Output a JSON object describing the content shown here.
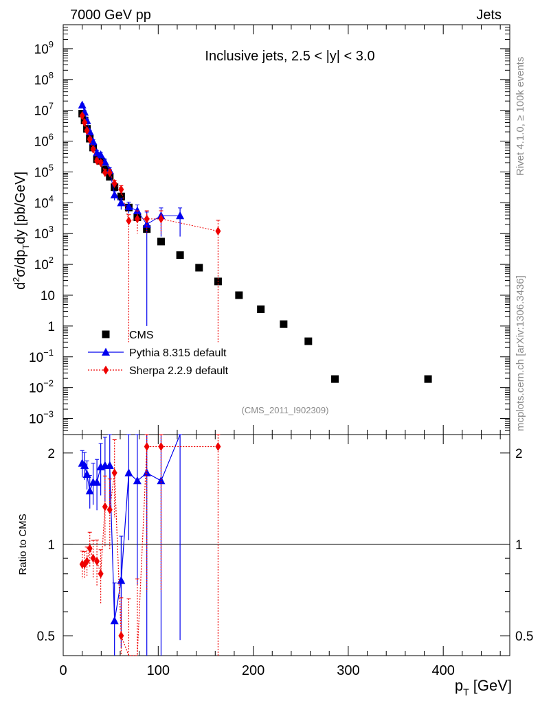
{
  "header": {
    "left": "7000 GeV pp",
    "right": "Jets"
  },
  "side_labels": {
    "rivet": "Rivet 4.1.0, ≥ 100k events",
    "mcplots": "mcplots.cern.ch [arXiv:1306.3436]"
  },
  "chart_data": {
    "type": "scatter",
    "title": "Inclusive jets, 2.5 < |y| < 3.0",
    "watermark": "(CMS_2011_I902309)",
    "xlabel": "p_T [GeV]",
    "ylabel": "d²σ/dp_T dy [pb/GeV]",
    "ratio_ylabel": "Ratio to CMS",
    "xlim": [
      0,
      470
    ],
    "ylim": [
      0.0003,
      6000000000
    ],
    "ratio_ylim": [
      0.43,
      2.3
    ],
    "x_ticks": [
      0,
      100,
      200,
      300,
      400
    ],
    "ratio_ticks": [
      0.5,
      1,
      2
    ],
    "ratio_reference": 1,
    "y_tick_labels": [
      {
        "value": 0.001,
        "mant": "10",
        "exp": "−3"
      },
      {
        "value": 0.01,
        "mant": "10",
        "exp": "−2"
      },
      {
        "value": 0.1,
        "mant": "10",
        "exp": "−1"
      },
      {
        "value": 1,
        "mant": "1",
        "exp": ""
      },
      {
        "value": 10,
        "mant": "10",
        "exp": ""
      },
      {
        "value": 100,
        "mant": "10",
        "exp": "2"
      },
      {
        "value": 1000,
        "mant": "10",
        "exp": "3"
      },
      {
        "value": 10000,
        "mant": "10",
        "exp": "4"
      },
      {
        "value": 100000,
        "mant": "10",
        "exp": "5"
      },
      {
        "value": 1000000,
        "mant": "10",
        "exp": "6"
      },
      {
        "value": 10000000,
        "mant": "10",
        "exp": "7"
      },
      {
        "value": 100000000,
        "mant": "10",
        "exp": "8"
      },
      {
        "value": 1000000000,
        "mant": "10",
        "exp": "9"
      }
    ],
    "legend": {
      "position": "bottom-left",
      "entries": [
        "CMS",
        "Pythia 8.315 default",
        "Sherpa 2.2.9 default"
      ]
    },
    "series": [
      {
        "name": "CMS",
        "marker": "square",
        "color": "#000000",
        "x": [
          20,
          22.5,
          25,
          28,
          31.5,
          35.5,
          39.5,
          44,
          49,
          54,
          61,
          69,
          78,
          88,
          103,
          123,
          143,
          163,
          185,
          208,
          232,
          258,
          286,
          384
        ],
        "y": [
          7800000,
          4700000,
          2500000,
          1200000,
          620000,
          260000,
          230000,
          120000,
          70000,
          32000,
          16000,
          7000,
          3400,
          1400,
          550,
          200,
          78,
          28,
          10,
          3.5,
          1.15,
          0.32,
          0.019,
          0.019
        ]
      },
      {
        "name": "Pythia 8.315 default",
        "marker": "triangle",
        "color": "#0000ee",
        "x": [
          20,
          22.5,
          25,
          28,
          31.5,
          35.5,
          39.5,
          44,
          49,
          54,
          61,
          69,
          78,
          88,
          103,
          123
        ],
        "y": [
          14800000,
          8700000,
          4600000,
          2000000,
          960000,
          420000,
          360000,
          210000,
          110000,
          18000,
          10000,
          7500,
          5500,
          2000,
          3800,
          3800
        ],
        "yerr_up": [
          1500000,
          900000,
          500000,
          250000,
          150000,
          80000,
          70000,
          50000,
          30000,
          6000,
          4000,
          3000,
          3000,
          3000,
          3000,
          3000
        ],
        "yerr_down": [
          1500000,
          900000,
          500000,
          250000,
          150000,
          80000,
          70000,
          50000,
          30000,
          6000,
          4000,
          3000,
          3000,
          1999,
          3000,
          3000
        ],
        "ratio": [
          1.85,
          1.82,
          1.7,
          1.5,
          1.6,
          1.6,
          1.8,
          1.82,
          1.82,
          0.56,
          0.76,
          1.72,
          1.62,
          1.72,
          1.62,
          2.3
        ]
      },
      {
        "name": "Sherpa 2.2.9 default",
        "marker": "diamond",
        "color": "#ee0000",
        "x": [
          20,
          22.5,
          25,
          28,
          31.5,
          35.5,
          39.5,
          44,
          49,
          54,
          61,
          69,
          78,
          88,
          103,
          163
        ],
        "y": [
          6700000,
          4000000,
          2200000,
          1150000,
          550000,
          230000,
          200000,
          95000,
          95000,
          42000,
          27000,
          2600,
          3000,
          3000,
          3000,
          1200
        ],
        "yerr_up": [
          700000,
          400000,
          250000,
          150000,
          80000,
          40000,
          40000,
          25000,
          25000,
          12000,
          9000,
          1500,
          2500,
          2500,
          2500,
          1500
        ],
        "yerr_down": [
          700000,
          400000,
          250000,
          150000,
          80000,
          40000,
          40000,
          25000,
          25000,
          12000,
          9000,
          2599.7,
          2000,
          2000,
          2000,
          1199.7
        ],
        "ratio": [
          0.86,
          0.86,
          0.88,
          0.97,
          0.9,
          0.88,
          0.8,
          1.33,
          1.3,
          1.72,
          0.5,
          0.42,
          0.42,
          2.1,
          2.1,
          2.1
        ]
      }
    ]
  }
}
